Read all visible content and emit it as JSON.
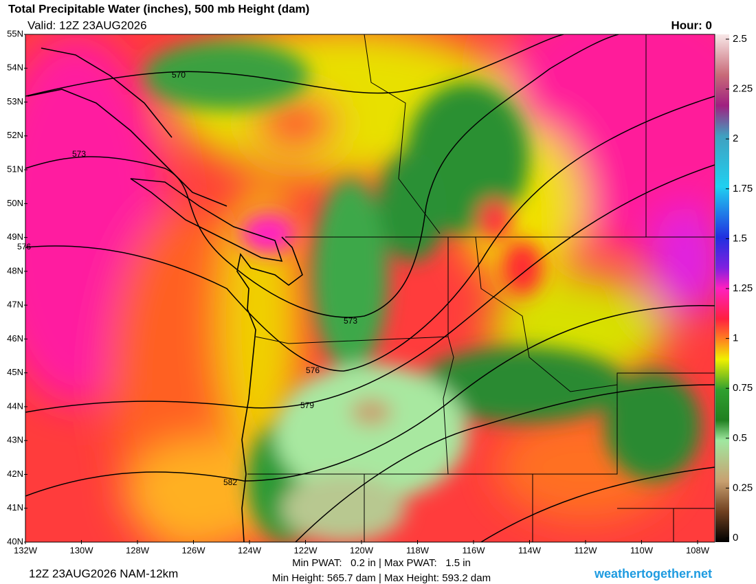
{
  "header": {
    "title": "Total Precipitable Water (inches), 500 mb Height (dam)",
    "valid": "Valid: 12Z 23AUG2026",
    "hour": "Hour: 0"
  },
  "map": {
    "lat_labels": [
      "55N",
      "54N",
      "53N",
      "52N",
      "51N",
      "50N",
      "49N",
      "48N",
      "47N",
      "46N",
      "45N",
      "44N",
      "43N",
      "42N",
      "41N",
      "40N"
    ],
    "lon_labels": [
      "132W",
      "130W",
      "128W",
      "126W",
      "124W",
      "122W",
      "120W",
      "118W",
      "116W",
      "114W",
      "112W",
      "110W",
      "108W"
    ],
    "contour_labels": [
      "570",
      "573",
      "573",
      "576",
      "576",
      "579",
      "582"
    ]
  },
  "colorbar": {
    "range": [
      0,
      2.5
    ],
    "ticks": [
      2.5,
      2.25,
      2,
      1.75,
      1.5,
      1.25,
      1,
      0.75,
      0.5,
      0.25,
      0
    ]
  },
  "footer": {
    "run": "12Z 23AUG2026 NAM-12km",
    "pwat": "Min PWAT:   0.2 in | Max PWAT:   1.5 in",
    "height": "Min Height: 565.7 dam | Max Height: 593.2 dam",
    "site": "weathertogether.net"
  }
}
